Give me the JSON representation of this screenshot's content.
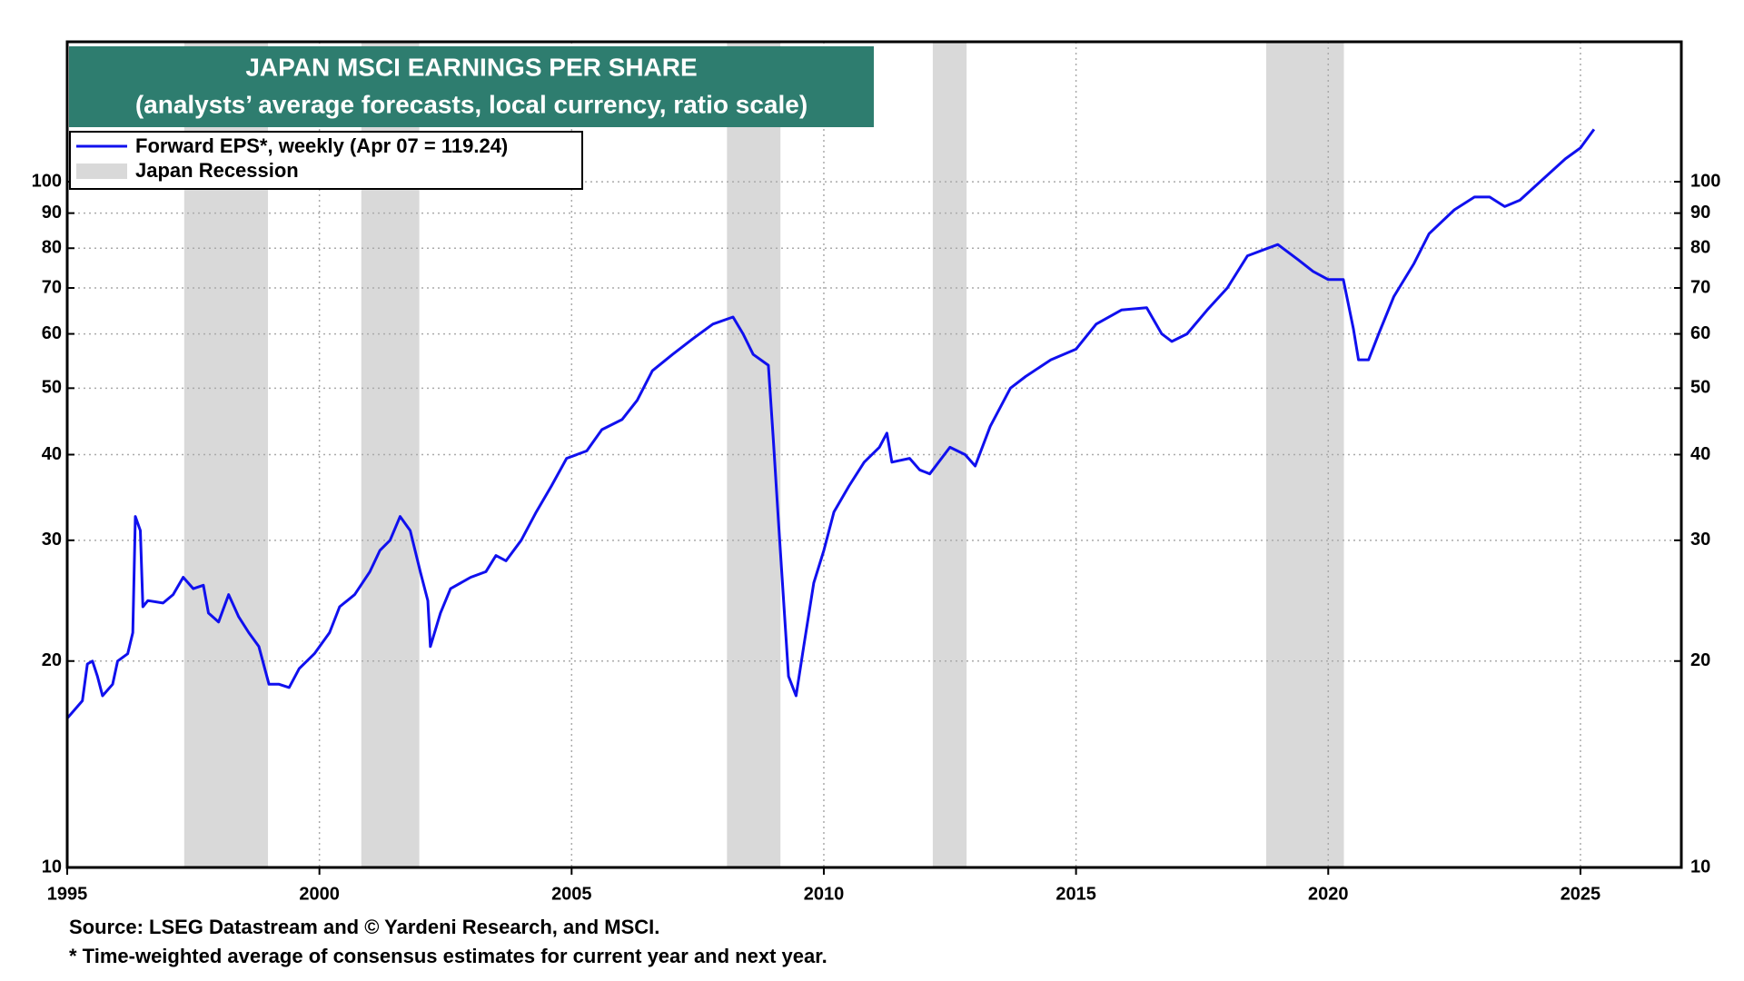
{
  "chart_data": {
    "type": "line",
    "title": "JAPAN MSCI EARNINGS PER SHARE",
    "subtitle": "(analysts’ average forecasts, local currency, ratio scale)",
    "source": "Source: LSEG Datastream and © Yardeni Research, and MSCI.",
    "footnote": "* Time-weighted average of consensus estimates for current year and next year.",
    "log_scale": true,
    "grid": true,
    "legend": "upper left",
    "xlim": [
      1995,
      2027
    ],
    "xticks": [
      1995,
      2000,
      2005,
      2010,
      2015,
      2020,
      2025
    ],
    "ylim": [
      10,
      160
    ],
    "yticks": [
      10,
      20,
      30,
      40,
      50,
      60,
      70,
      80,
      90,
      100
    ],
    "recession_name": "Japan Recession",
    "recession_color": "#d9d9d9",
    "recessions": [
      [
        1997.32,
        1998.98
      ],
      [
        2000.83,
        2001.98
      ],
      [
        2008.08,
        2009.14
      ],
      [
        2012.16,
        2012.83
      ],
      [
        2018.77,
        2020.31
      ]
    ],
    "series": [
      {
        "name": "Forward EPS*, weekly (Apr 07 = 119.24)",
        "color": "#1010ee",
        "x": [
          1995.0,
          1995.3,
          1995.4,
          1995.5,
          1995.6,
          1995.7,
          1995.9,
          1996.0,
          1996.2,
          1996.3,
          1996.35,
          1996.45,
          1996.5,
          1996.6,
          1996.9,
          1997.1,
          1997.3,
          1997.5,
          1997.7,
          1997.8,
          1998.0,
          1998.2,
          1998.4,
          1998.6,
          1998.8,
          1999.0,
          1999.2,
          1999.4,
          1999.6,
          1999.9,
          2000.2,
          2000.4,
          2000.7,
          2001.0,
          2001.2,
          2001.4,
          2001.6,
          2001.8,
          2002.0,
          2002.15,
          2002.2,
          2002.4,
          2002.6,
          2003.0,
          2003.3,
          2003.5,
          2003.7,
          2004.0,
          2004.3,
          2004.6,
          2004.9,
          2005.3,
          2005.6,
          2006.0,
          2006.3,
          2006.6,
          2007.0,
          2007.4,
          2007.8,
          2008.2,
          2008.4,
          2008.6,
          2008.9,
          2009.0,
          2009.1,
          2009.3,
          2009.45,
          2009.6,
          2009.8,
          2010.0,
          2010.2,
          2010.5,
          2010.8,
          2011.1,
          2011.25,
          2011.35,
          2011.7,
          2011.9,
          2012.1,
          2012.5,
          2012.8,
          2013.0,
          2013.3,
          2013.7,
          2014.0,
          2014.5,
          2015.0,
          2015.4,
          2015.9,
          2016.4,
          2016.7,
          2016.9,
          2017.2,
          2017.6,
          2018.0,
          2018.4,
          2018.8,
          2019.0,
          2019.4,
          2019.7,
          2020.0,
          2020.3,
          2020.5,
          2020.6,
          2020.8,
          2021.0,
          2021.3,
          2021.7,
          2022.0,
          2022.5,
          2022.9,
          2023.2,
          2023.5,
          2023.8,
          2024.2,
          2024.7,
          2025.0,
          2025.27
        ],
        "values": [
          16.5,
          17.5,
          19.8,
          20,
          19,
          17.8,
          18.5,
          20,
          20.5,
          22,
          32.5,
          31,
          24,
          24.5,
          24.3,
          25,
          26.5,
          25.5,
          25.8,
          23.5,
          22.8,
          25,
          23.2,
          22,
          21,
          18.5,
          18.5,
          18.3,
          19.5,
          20.5,
          22,
          24,
          25,
          27,
          29,
          30,
          32.5,
          31,
          27,
          24.5,
          21,
          23.5,
          25.5,
          26.5,
          27,
          28.5,
          28,
          30,
          33,
          36,
          39.5,
          40.5,
          43.5,
          45,
          48,
          53,
          56,
          59,
          62,
          63.5,
          60,
          56,
          54,
          42,
          32,
          19,
          17.8,
          21,
          26,
          29,
          33,
          36,
          39,
          41,
          43,
          39,
          39.5,
          38,
          37.5,
          41,
          40,
          38.5,
          44,
          50,
          52,
          55,
          57,
          62,
          65,
          65.5,
          60,
          58.5,
          60,
          65,
          70,
          78,
          80,
          81,
          77,
          74,
          72,
          72,
          61,
          55,
          55,
          60,
          68,
          76,
          84,
          91,
          95,
          95,
          92,
          94,
          100,
          108,
          112,
          119.24
        ]
      }
    ]
  }
}
